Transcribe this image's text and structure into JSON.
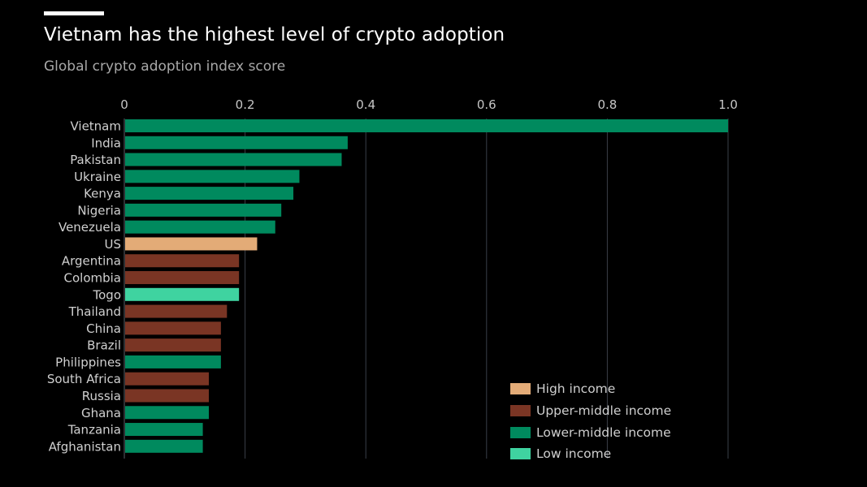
{
  "header": {
    "title": "Vietnam has the highest level of crypto adoption",
    "subtitle": "Global crypto adoption index score"
  },
  "colors": {
    "High income": "#e3ab77",
    "Upper-middle income": "#7a3524",
    "Lower-middle income": "#008a5e",
    "Low income": "#3fd3a0",
    "gridline": "#3a3f48",
    "tick_text": "#c6c6c6",
    "category_text": "#d0d0d0"
  },
  "legend": {
    "items": [
      {
        "label": "High income"
      },
      {
        "label": "Upper-middle income"
      },
      {
        "label": "Lower-middle income"
      },
      {
        "label": "Low income"
      }
    ]
  },
  "chart_data": {
    "type": "bar",
    "orientation": "horizontal",
    "title": "Vietnam has the highest level of crypto adoption",
    "subtitle": "Global crypto adoption index score",
    "xlim": [
      0,
      1.0
    ],
    "x_ticks": [
      "0",
      "0.2",
      "0.4",
      "0.6",
      "0.8",
      "1.0"
    ],
    "x_tick_values": [
      0,
      0.2,
      0.4,
      0.6,
      0.8,
      1.0
    ],
    "grid": true,
    "legend_position": "bottom-right",
    "categories": [
      "Vietnam",
      "India",
      "Pakistan",
      "Ukraine",
      "Kenya",
      "Nigeria",
      "Venezuela",
      "US",
      "Argentina",
      "Colombia",
      "Togo",
      "Thailand",
      "China",
      "Brazil",
      "Philippines",
      "South Africa",
      "Russia",
      "Ghana",
      "Tanzania",
      "Afghanistan"
    ],
    "values": [
      1.0,
      0.37,
      0.36,
      0.29,
      0.28,
      0.26,
      0.25,
      0.22,
      0.19,
      0.19,
      0.19,
      0.17,
      0.16,
      0.16,
      0.16,
      0.14,
      0.14,
      0.14,
      0.13,
      0.13
    ],
    "groups": [
      "Lower-middle income",
      "Lower-middle income",
      "Lower-middle income",
      "Lower-middle income",
      "Lower-middle income",
      "Lower-middle income",
      "Lower-middle income",
      "High income",
      "Upper-middle income",
      "Upper-middle income",
      "Low income",
      "Upper-middle income",
      "Upper-middle income",
      "Upper-middle income",
      "Lower-middle income",
      "Upper-middle income",
      "Upper-middle income",
      "Lower-middle income",
      "Lower-middle income",
      "Lower-middle income"
    ]
  }
}
